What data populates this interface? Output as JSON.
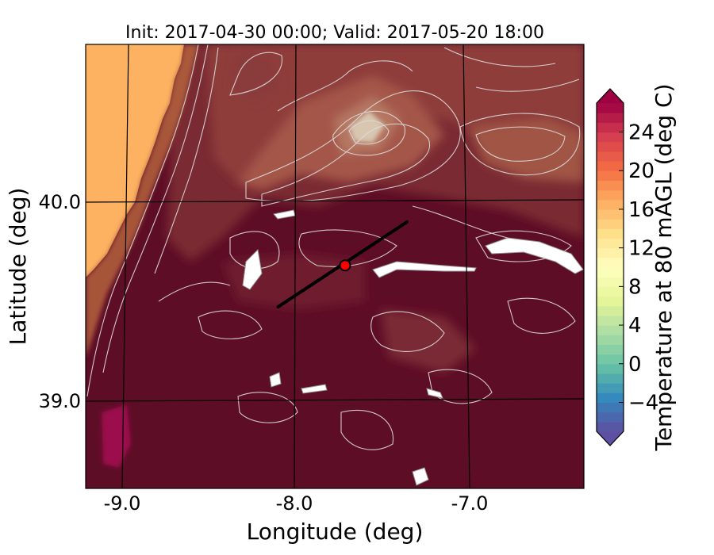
{
  "figure": {
    "title": "Init: 2017-04-30 00:00; Valid: 2017-05-20 18:00",
    "xlabel": "Longitude (deg)",
    "ylabel": "Latitude (deg)",
    "x_ticks": [
      "-9.0",
      "-8.0",
      "-7.0"
    ],
    "y_ticks": [
      "40.0",
      "39.0"
    ]
  },
  "colorbar": {
    "label": "Temperature at 80 mAGL (deg C)",
    "ticks": [
      "−4",
      "0",
      "4",
      "8",
      "12",
      "16",
      "20",
      "24"
    ],
    "tick_values": [
      -4,
      0,
      4,
      8,
      12,
      16,
      20,
      24
    ],
    "range": [
      -7,
      27
    ],
    "step": 1,
    "colormap": "Spectral_r",
    "extend": "both"
  },
  "map": {
    "lon_range": [
      -9.25,
      -6.35
    ],
    "lat_range": [
      38.55,
      40.8
    ],
    "gridlines": {
      "meridians": [
        -9.0,
        -8.0,
        -7.0
      ],
      "parallels": [
        39.0,
        40.0
      ]
    },
    "ocean_color": "#fdb262",
    "land_base_color": "#5e0d26",
    "contour_color": "#d9d9d9",
    "cross_section": {
      "start": [
        -8.13,
        39.47
      ],
      "end": [
        -7.38,
        39.9
      ],
      "color": "#000000"
    },
    "marker": {
      "lon": -7.74,
      "lat": 39.68,
      "color": "#ff0000"
    }
  }
}
